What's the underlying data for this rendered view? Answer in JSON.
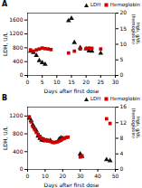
{
  "chart_data": [
    {
      "type": "scatter",
      "title": "A",
      "xlabel": "Days after first dose",
      "ylabel": "LDH, U/L",
      "y2label": "Hgb, g/dL\n(hemoglobin)",
      "xlim": [
        0,
        30
      ],
      "xticks": [
        0,
        5,
        10,
        15,
        20,
        25,
        30
      ],
      "ylim": [
        0,
        1800
      ],
      "yticks": [
        0,
        400,
        800,
        1200,
        1600
      ],
      "y2lim": [
        0,
        20
      ],
      "y2ticks": [
        0,
        5,
        10,
        15,
        20
      ],
      "legend": "upper right",
      "series": [
        {
          "name": "LDH",
          "color": "#111111",
          "marker": "triangle",
          "x": [
            1,
            2,
            3,
            4,
            5,
            6,
            14,
            15,
            16,
            18,
            20,
            21,
            22,
            25
          ],
          "values": [
            700,
            660,
            580,
            430,
            370,
            320,
            1580,
            1650,
            950,
            800,
            770,
            710,
            700,
            640
          ]
        },
        {
          "name": "Hemoglobin",
          "color": "#cc0000",
          "marker": "square",
          "axis": "y2",
          "x": [
            1,
            2,
            3,
            4,
            5,
            6,
            7,
            8,
            14,
            16,
            18,
            20,
            21,
            22,
            25
          ],
          "values": [
            8.2,
            7.8,
            8.2,
            8.5,
            8.8,
            8.6,
            8.5,
            8.3,
            7.2,
            7.8,
            8.5,
            8.6,
            8.8,
            8.7,
            8.5
          ]
        }
      ]
    },
    {
      "type": "scatter",
      "title": "B",
      "xlabel": "Days after first dose",
      "ylabel": "LDH, U/L",
      "y2label": "Hgb, g/dL\n(hemoglobin)",
      "xlim": [
        0,
        50
      ],
      "xticks": [
        0,
        10,
        20,
        30,
        40,
        50
      ],
      "ylim": [
        0,
        1400
      ],
      "yticks": [
        0,
        400,
        800,
        1200
      ],
      "y2lim": [
        0,
        16
      ],
      "y2ticks": [
        0,
        4,
        8,
        12,
        16
      ],
      "legend": "upper right",
      "series": [
        {
          "name": "LDH",
          "color": "#111111",
          "marker": "triangle",
          "x": [
            1,
            2,
            3,
            4,
            5,
            6,
            7,
            8,
            9,
            10,
            11,
            12,
            13,
            18,
            19,
            20,
            30,
            31,
            45,
            47
          ],
          "values": [
            1150,
            1100,
            1000,
            930,
            870,
            750,
            700,
            660,
            650,
            640,
            650,
            640,
            650,
            680,
            710,
            700,
            350,
            290,
            220,
            195
          ]
        },
        {
          "name": "Hemoglobin",
          "color": "#cc0000",
          "marker": "square",
          "axis": "y2",
          "x": [
            1,
            2,
            3,
            4,
            5,
            6,
            7,
            8,
            9,
            10,
            11,
            12,
            13,
            14,
            15,
            16,
            17,
            18,
            19,
            20,
            21,
            22,
            23,
            30,
            31,
            45,
            47
          ],
          "values": [
            13.5,
            12.2,
            11.0,
            10.3,
            9.5,
            9.0,
            8.5,
            8.0,
            7.8,
            7.5,
            7.5,
            7.3,
            7.2,
            7.0,
            6.9,
            7.0,
            7.1,
            7.3,
            7.5,
            7.8,
            8.0,
            8.2,
            8.3,
            3.2,
            3.5,
            13.0,
            11.8
          ]
        }
      ]
    }
  ]
}
